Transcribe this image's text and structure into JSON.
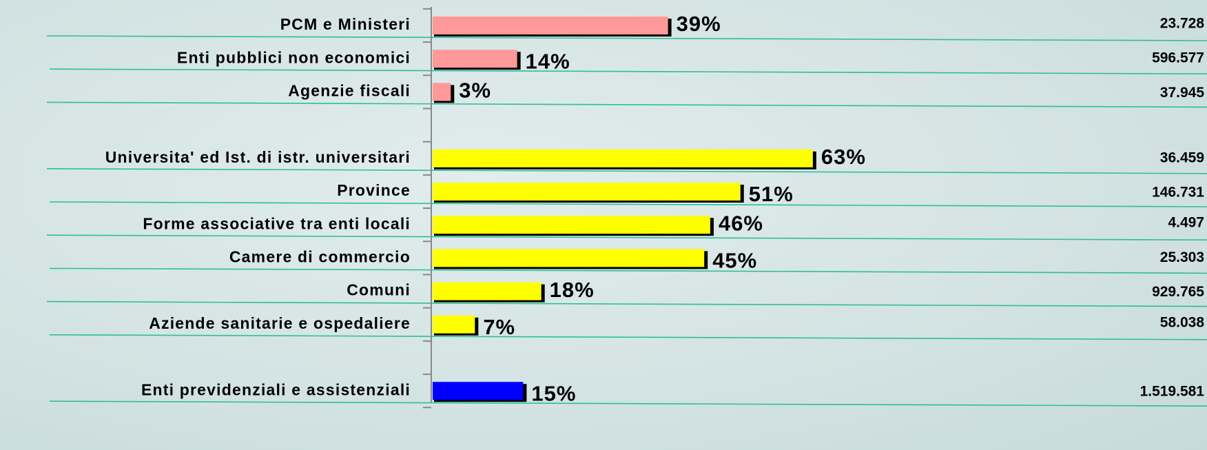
{
  "chart_data": {
    "type": "bar",
    "categories": [
      "PCM e Ministeri",
      "Enti pubblici non economici",
      "Agenzie fiscali",
      null,
      "Universita' ed Ist. di istr. universitari",
      "Province",
      "Forme associative tra enti locali",
      "Camere di commercio",
      "Comuni",
      "Aziende sanitarie e ospedaliere",
      null,
      "Enti previdenziali e assistenziali"
    ],
    "values": [
      39,
      14,
      3,
      null,
      63,
      51,
      46,
      45,
      18,
      7,
      null,
      15
    ],
    "value_labels": [
      "39%",
      "14%",
      "3%",
      null,
      "63%",
      "51%",
      "46%",
      "45%",
      "18%",
      "7%",
      null,
      "15%"
    ],
    "colors": [
      "#ff9999",
      "#ff9999",
      "#ff9999",
      null,
      "#ffff00",
      "#ffff00",
      "#ffff00",
      "#ffff00",
      "#ffff00",
      "#ffff00",
      null,
      "#0000ff"
    ],
    "totals": [
      "23.728",
      "596.577",
      "37.945",
      null,
      "36.459",
      "146.731",
      "4.497",
      "25.303",
      "929.765",
      "58.038",
      null,
      "1.519.581"
    ],
    "xlim": [
      0,
      100
    ]
  }
}
